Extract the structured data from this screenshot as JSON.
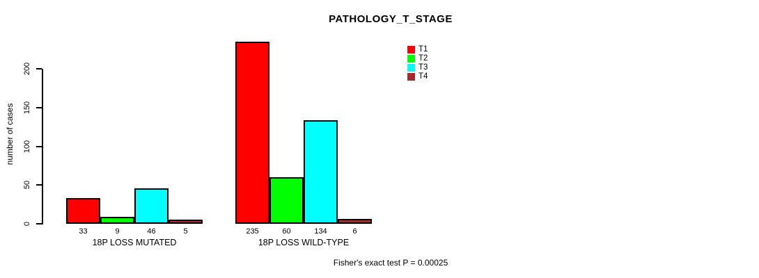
{
  "title": "PATHOLOGY_T_STAGE",
  "footnote": "Fisher's exact test P = 0.00025",
  "y_axis": {
    "label": "number of cases",
    "ticks": [
      0,
      50,
      100,
      150,
      200
    ]
  },
  "legend": {
    "items": [
      {
        "label": "T1",
        "color": "#FF0000"
      },
      {
        "label": "T2",
        "color": "#00FF00"
      },
      {
        "label": "T3",
        "color": "#00FFFF"
      },
      {
        "label": "T4",
        "color": "#A52A2A"
      }
    ]
  },
  "chart_data": {
    "type": "bar",
    "title": "PATHOLOGY_T_STAGE",
    "xlabel": "",
    "ylabel": "number of cases",
    "ylim": [
      0,
      240
    ],
    "axis_tick_values": [
      0,
      50,
      100,
      150,
      200
    ],
    "grid": false,
    "legend_position": "top-right",
    "categories": [
      "18P LOSS MUTATED",
      "18P LOSS WILD-TYPE"
    ],
    "series": [
      {
        "name": "T1",
        "color": "#FF0000",
        "values": [
          33,
          235
        ]
      },
      {
        "name": "T2",
        "color": "#00FF00",
        "values": [
          9,
          60
        ]
      },
      {
        "name": "T3",
        "color": "#00FFFF",
        "values": [
          46,
          134
        ]
      },
      {
        "name": "T4",
        "color": "#A52A2A",
        "values": [
          5,
          6
        ]
      }
    ],
    "bar_value_labels": {
      "18P LOSS MUTATED": [
        33,
        9,
        46,
        5
      ],
      "18P LOSS WILD-TYPE": [
        235,
        60,
        134,
        6
      ]
    },
    "annotation": "Fisher's exact test P = 0.00025"
  }
}
